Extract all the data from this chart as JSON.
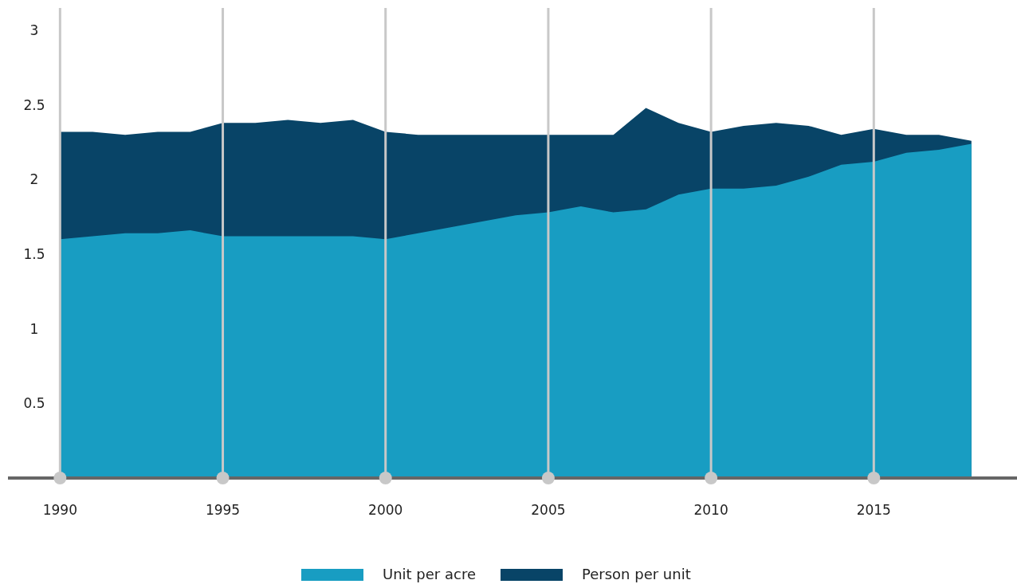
{
  "chart_data": {
    "type": "area",
    "x": [
      1990,
      1991,
      1992,
      1993,
      1994,
      1995,
      1996,
      1997,
      1998,
      1999,
      2000,
      2001,
      2002,
      2003,
      2004,
      2005,
      2006,
      2007,
      2008,
      2009,
      2010,
      2011,
      2012,
      2013,
      2014,
      2015,
      2016,
      2017,
      2018
    ],
    "series": [
      {
        "name": "Person per unit",
        "color": "#084467",
        "values": [
          2.32,
          2.32,
          2.3,
          2.32,
          2.32,
          2.38,
          2.38,
          2.4,
          2.38,
          2.4,
          2.32,
          2.3,
          2.3,
          2.3,
          2.3,
          2.3,
          2.3,
          2.3,
          2.48,
          2.38,
          2.32,
          2.36,
          2.38,
          2.36,
          2.3,
          2.34,
          2.3,
          2.3,
          2.26
        ]
      },
      {
        "name": "Unit per acre",
        "color": "#189dc2",
        "values": [
          1.6,
          1.62,
          1.64,
          1.64,
          1.66,
          1.62,
          1.62,
          1.62,
          1.62,
          1.62,
          1.6,
          1.64,
          1.68,
          1.72,
          1.76,
          1.78,
          1.82,
          1.78,
          1.8,
          1.9,
          1.94,
          1.94,
          1.96,
          2.02,
          2.1,
          2.12,
          2.18,
          2.2,
          2.24
        ]
      }
    ],
    "xlim": [
      1988.4,
      2019.4
    ],
    "xticks": [
      1990,
      1995,
      2000,
      2005,
      2010,
      2015
    ],
    "ylim": [
      0,
      3.15
    ],
    "yticks": [
      {
        "value": 0.5,
        "label": "0.5"
      },
      1,
      {
        "value": 1.5,
        "label": "1.5"
      },
      2,
      {
        "value": 2.5,
        "label": "2.5"
      },
      3
    ],
    "grid": "x",
    "legend": "bottom"
  }
}
